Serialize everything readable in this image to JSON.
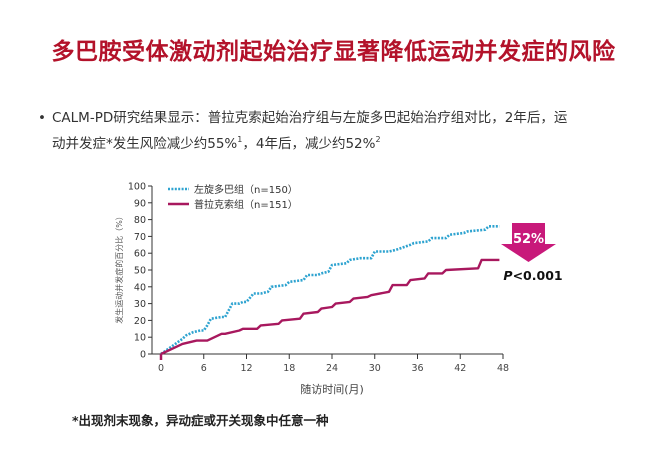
{
  "slide": {
    "title": "多巴胺受体激动剂起始治疗显著降低运动并发症的风险",
    "bullet": {
      "marker": "•",
      "line1": "CALM-PD研究结果显示：普拉克索起始治疗组与左旋多巴起始治疗组对比，2年后，运",
      "line2_a": "动并发症*发生风险减少约55%",
      "sup1": "1",
      "line2_b": "，4年后，减少约52%",
      "sup2": "2"
    },
    "footnote": "*出现剂末现象，异动症或开关现象中任意一种"
  },
  "chart_data": {
    "type": "line",
    "title": "",
    "xlabel": "随访时间(月)",
    "ylabel": "发生运动并发症的百分比（%）",
    "x_ticks": [
      0,
      6,
      12,
      18,
      24,
      30,
      36,
      42,
      48
    ],
    "y_ticks": [
      0,
      10,
      20,
      30,
      40,
      50,
      60,
      70,
      80,
      90,
      100
    ],
    "xlim": [
      0,
      48
    ],
    "ylim": [
      0,
      100
    ],
    "grid": false,
    "legend_position": "top-left",
    "series": [
      {
        "name": "左旋多巴组（n=150）",
        "style": "dotted",
        "color": "#2ea3d0",
        "x": [
          0,
          1,
          2,
          3,
          3.5,
          4.5,
          5.5,
          6,
          6.5,
          7,
          8.5,
          9,
          10,
          11,
          11.5,
          12,
          13,
          14,
          15,
          15.5,
          17.5,
          18,
          20,
          20.5,
          22,
          22.5,
          23.5,
          24,
          26,
          26.5,
          28,
          29.5,
          30,
          32,
          33,
          35,
          35.5,
          37.5,
          38,
          40,
          40.5,
          42.5,
          43,
          45.5,
          46,
          47.5
        ],
        "values": [
          0,
          3,
          6,
          9,
          11,
          13,
          14,
          14,
          17,
          21,
          22,
          22,
          30,
          30,
          31,
          31,
          36,
          36,
          37,
          40,
          41,
          43,
          44,
          47,
          47,
          48,
          49,
          53,
          54,
          56,
          57,
          57,
          61,
          61,
          62,
          65,
          66,
          67,
          69,
          69,
          71,
          72,
          73,
          74,
          76,
          76
        ]
      },
      {
        "name": "普拉克索组（n=151）",
        "style": "solid",
        "color": "#a8185e",
        "x": [
          0,
          2,
          3,
          5,
          6,
          6.5,
          8.5,
          9,
          11,
          11.5,
          13.5,
          14,
          16.5,
          17,
          19.5,
          20,
          22,
          22.5,
          24,
          24.5,
          26.5,
          27,
          29,
          29.5,
          32,
          32.5,
          34.5,
          35,
          37,
          37.5,
          39.5,
          40,
          44.5,
          45,
          47.5
        ],
        "values": [
          0,
          4,
          6,
          8,
          8,
          8,
          12,
          12,
          14,
          15,
          15,
          17,
          18,
          20,
          21,
          24,
          25,
          27,
          28,
          30,
          31,
          33,
          34,
          35,
          37,
          41,
          41,
          44,
          45,
          48,
          48,
          50,
          51,
          56,
          56
        ]
      }
    ],
    "annotations": {
      "reduction_label": "52%",
      "p_value_italic": "P",
      "p_value_rest": "<0.001",
      "arrow_color": "#c8197a"
    }
  }
}
